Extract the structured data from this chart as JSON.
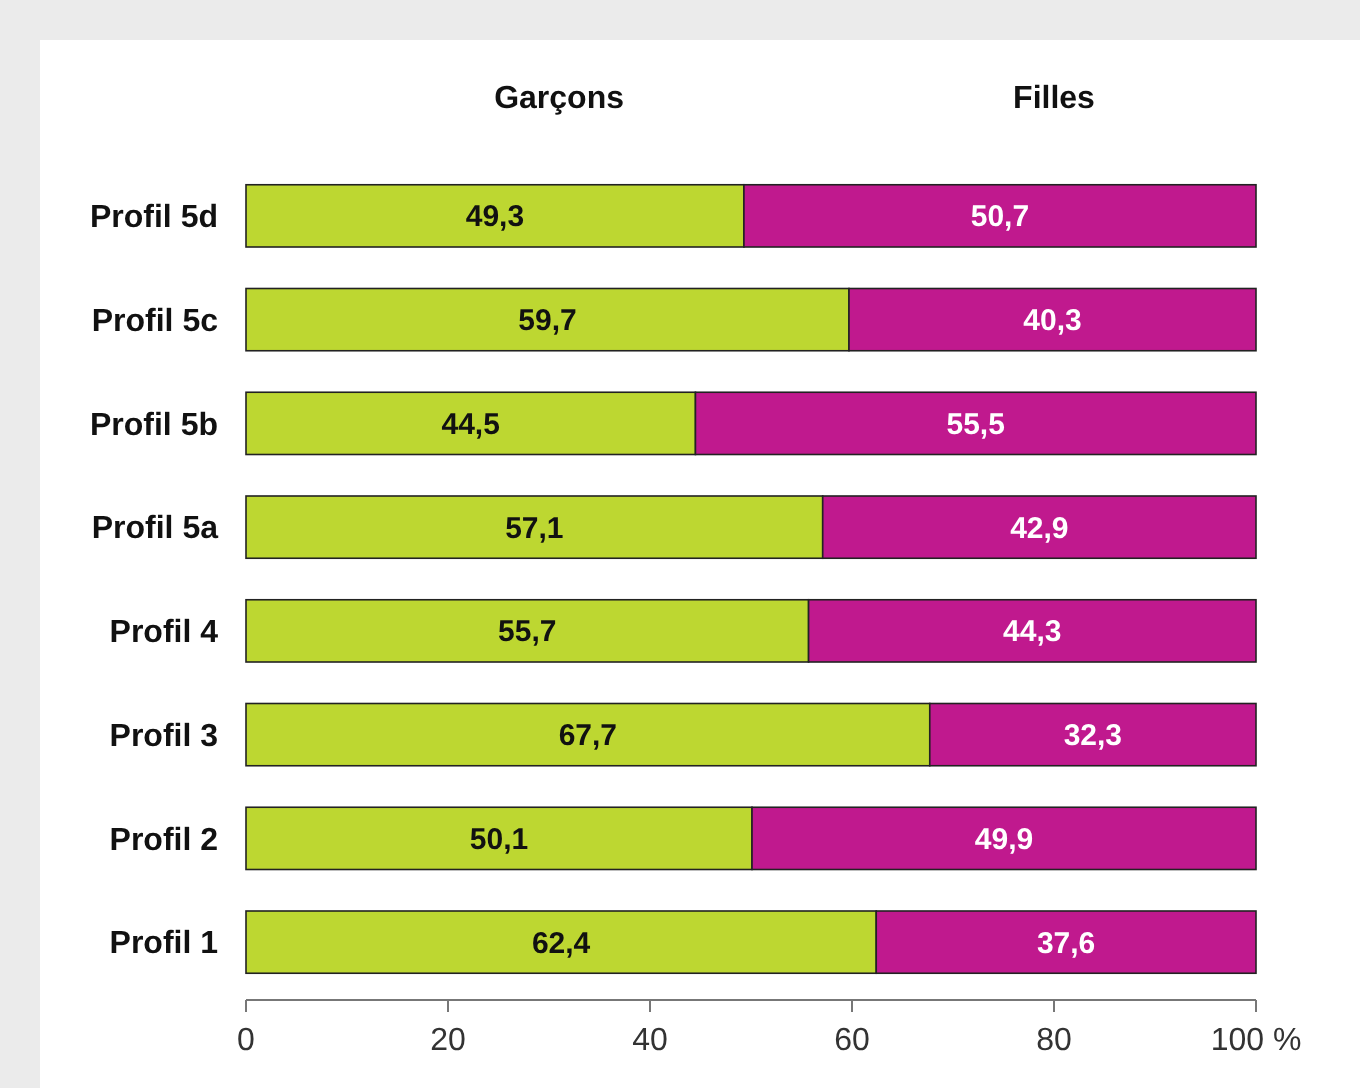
{
  "chart_data": {
    "type": "bar",
    "orientation": "horizontal",
    "stacked": true,
    "categories": [
      "Profil 5d",
      "Profil 5c",
      "Profil 5b",
      "Profil 5a",
      "Profil 4",
      "Profil 3",
      "Profil 2",
      "Profil 1"
    ],
    "series": [
      {
        "name": "Garçons",
        "color": "#bdd731",
        "values": [
          49.3,
          59.7,
          44.5,
          57.1,
          55.7,
          67.7,
          50.1,
          62.4
        ],
        "value_labels": [
          "49,3",
          "59,7",
          "44,5",
          "57,1",
          "55,7",
          "67,7",
          "50,1",
          "62,4"
        ]
      },
      {
        "name": "Filles",
        "color": "#c0198e",
        "values": [
          50.7,
          40.3,
          55.5,
          42.9,
          44.3,
          32.3,
          49.9,
          37.6
        ],
        "value_labels": [
          "50,7",
          "40,3",
          "55,5",
          "42,9",
          "44,3",
          "32,3",
          "49,9",
          "37,6"
        ]
      }
    ],
    "xlim": [
      0,
      100
    ],
    "xticks": [
      0,
      20,
      40,
      60,
      80,
      {
        "value": 100,
        "label": "100 %"
      }
    ],
    "grid": false,
    "legend": "top"
  }
}
